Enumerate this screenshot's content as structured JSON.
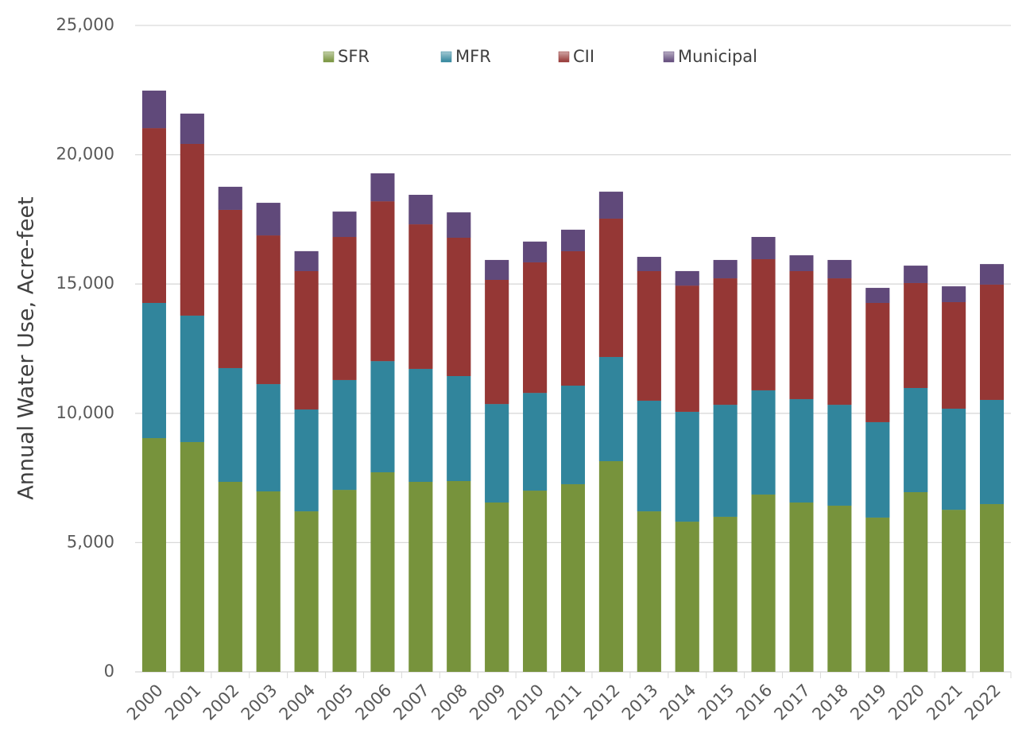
{
  "chart_data": {
    "type": "stacked-bar",
    "y_label": "Annual Water Use, Acre-feet",
    "categories": [
      "2000",
      "2001",
      "2002",
      "2003",
      "2004",
      "2005",
      "2006",
      "2007",
      "2008",
      "2009",
      "2010",
      "2011",
      "2012",
      "2013",
      "2014",
      "2015",
      "2016",
      "2017",
      "2018",
      "2019",
      "2020",
      "2021",
      "2022"
    ],
    "series": [
      {
        "name": "SFR",
        "color": "#77933c",
        "values": [
          9040,
          8890,
          7350,
          6980,
          6210,
          7040,
          7720,
          7350,
          7380,
          6550,
          7010,
          7260,
          8150,
          6210,
          5810,
          6000,
          6860,
          6550,
          6430,
          5970,
          6950,
          6270,
          6490
        ]
      },
      {
        "name": "MFR",
        "color": "#31859c",
        "values": [
          5230,
          4890,
          4400,
          4150,
          3940,
          4250,
          4300,
          4370,
          4060,
          3810,
          3780,
          3810,
          4030,
          4280,
          4250,
          4330,
          4030,
          4000,
          3900,
          3690,
          4030,
          3910,
          4030
        ]
      },
      {
        "name": "CII",
        "color": "#953735",
        "values": [
          6760,
          6640,
          6120,
          5750,
          5350,
          5530,
          6180,
          5590,
          5350,
          4800,
          5050,
          5200,
          5350,
          5010,
          4880,
          4890,
          5070,
          4950,
          4890,
          4610,
          4060,
          4120,
          4460
        ]
      },
      {
        "name": "Municipal",
        "color": "#60497a",
        "values": [
          1450,
          1170,
          890,
          1260,
          770,
          980,
          1080,
          1140,
          980,
          770,
          800,
          830,
          1040,
          550,
          560,
          710,
          860,
          610,
          710,
          580,
          670,
          610,
          790
        ]
      }
    ],
    "ylim": [
      0,
      25000
    ],
    "yticks": [
      0,
      {
        "value": 5000,
        "label": "5,000"
      },
      {
        "value": 10000,
        "label": "10,000"
      },
      {
        "value": 15000,
        "label": "15,000"
      },
      {
        "value": 20000,
        "label": "20,000"
      },
      {
        "value": 25000,
        "label": "25,000"
      }
    ],
    "grid": true
  }
}
